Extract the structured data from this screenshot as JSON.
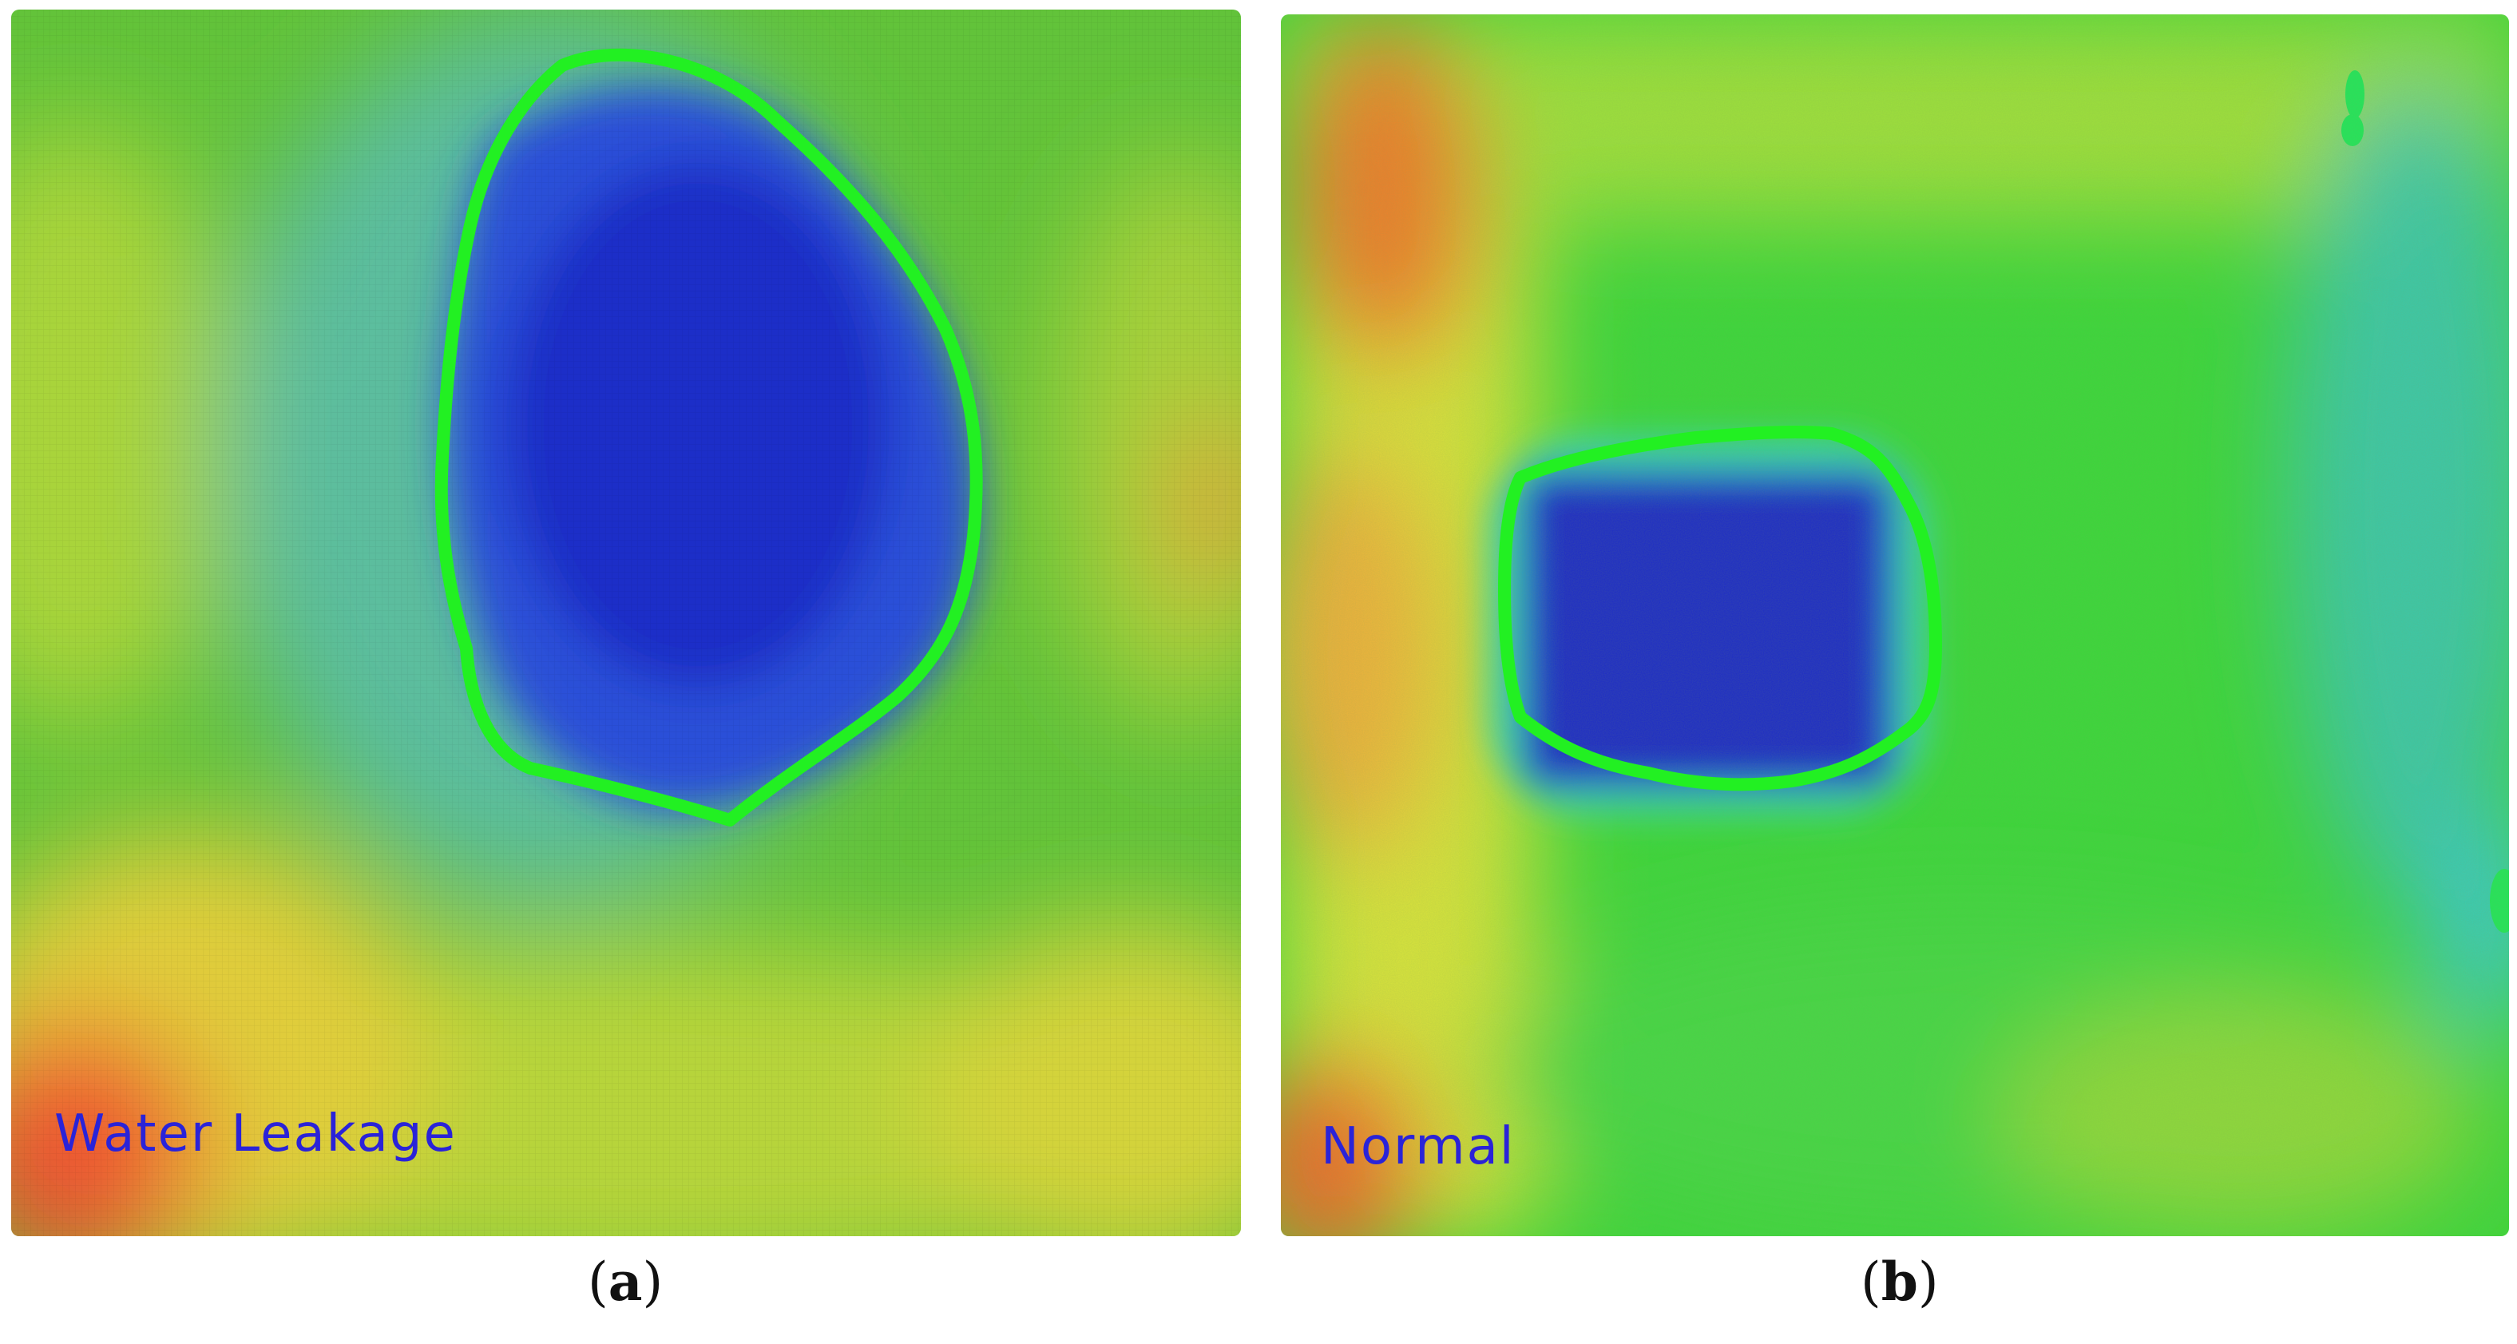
{
  "panels": [
    {
      "id": "a",
      "overlay_label": "Water Leakage",
      "caption_letter": "a",
      "label_color": "#2a23d8",
      "contour_color": "#22f022"
    },
    {
      "id": "b",
      "overlay_label": "Normal",
      "caption_letter": "b",
      "label_color": "#2a23d8",
      "contour_color": "#22f022"
    }
  ]
}
